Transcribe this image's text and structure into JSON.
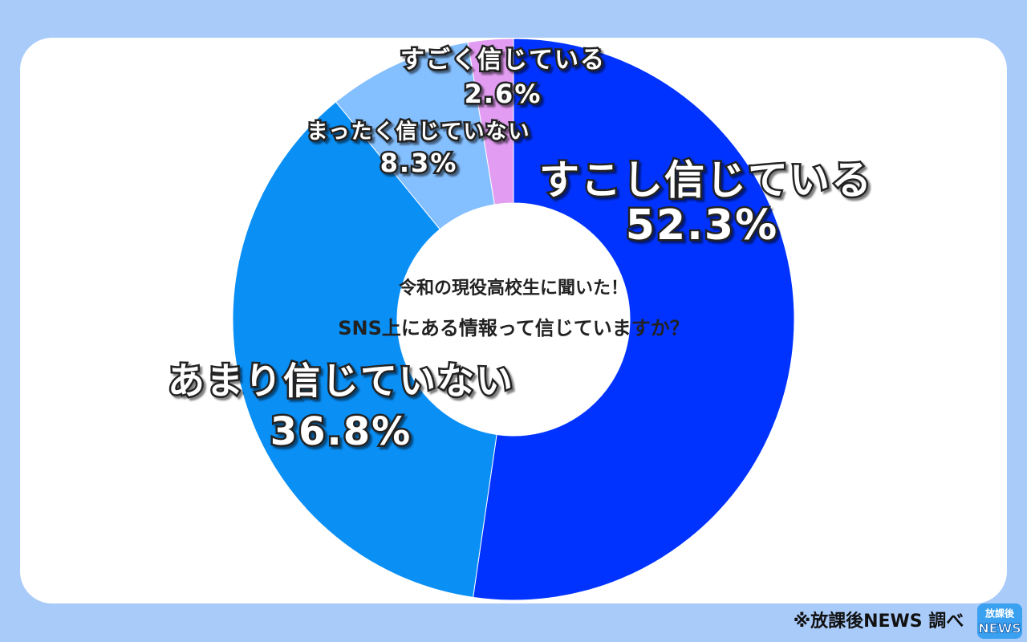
{
  "chart_data": {
    "type": "pie",
    "title": [
      "令和の現役高校生に聞いた！",
      "SNS上にある情報って信じていますか？"
    ],
    "categories": [
      "すこし信じている",
      "あまり信じていない",
      "まったく信じていない",
      "すごく信じている"
    ],
    "values": [
      52.3,
      36.8,
      8.3,
      2.6
    ],
    "value_labels": [
      "52.3%",
      "36.8%",
      "8.3%",
      "2.6%"
    ],
    "colors": [
      "#0033ff",
      "#0a8ff5",
      "#84bfff",
      "#e29cf2"
    ],
    "source": "※放課後NEWS 調べ",
    "logo": [
      "放課後",
      "NEWS"
    ]
  }
}
